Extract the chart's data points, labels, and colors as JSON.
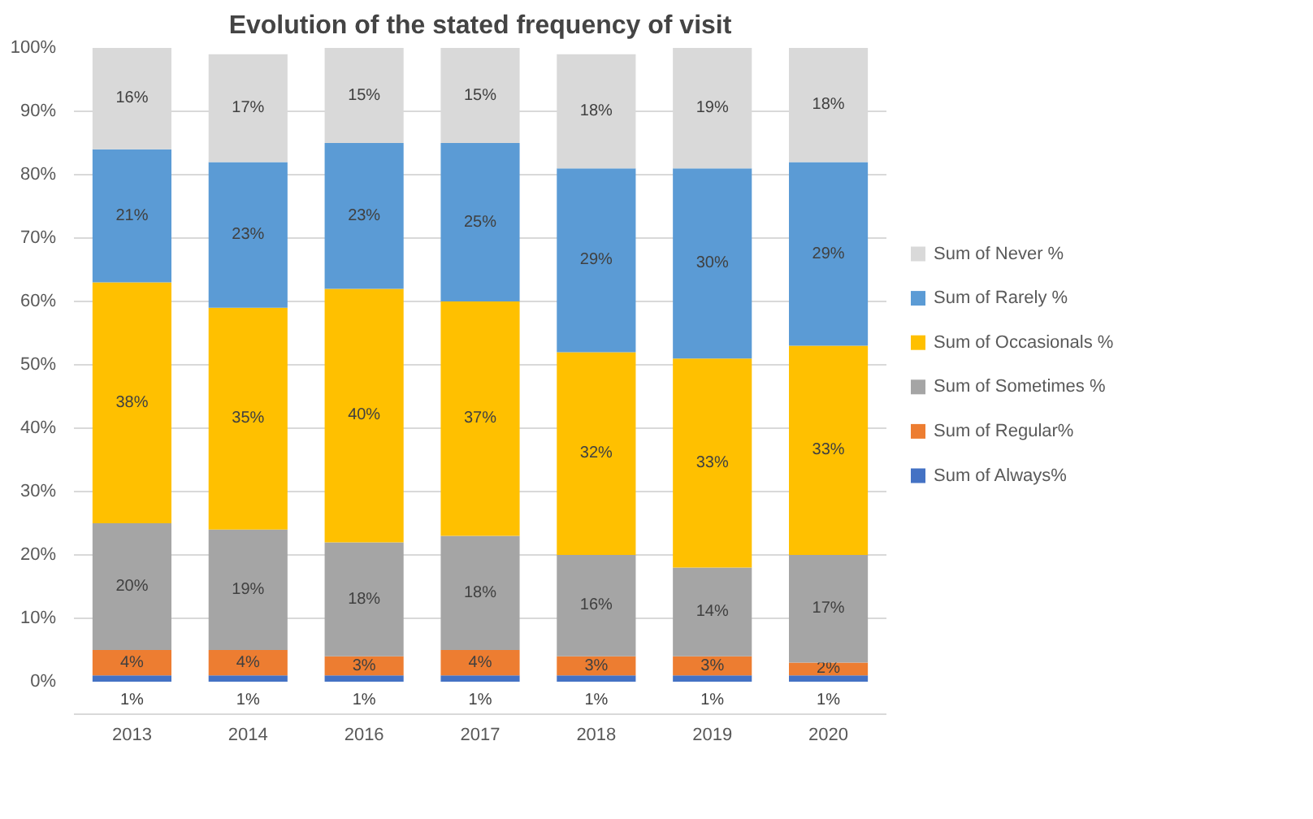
{
  "chart_data": {
    "type": "bar",
    "title": "Evolution of the stated frequency of visit",
    "stacked": true,
    "categories": [
      "2013",
      "2014",
      "2016",
      "2017",
      "2018",
      "2019",
      "2020"
    ],
    "series": [
      {
        "name": "Sum of Always%",
        "color": "#4472c4",
        "values": [
          1,
          1,
          1,
          1,
          1,
          1,
          1
        ],
        "value_labels": [
          "1%",
          "1%",
          "1%",
          "1%",
          "1%",
          "1%",
          "1%"
        ]
      },
      {
        "name": "Sum of Regular%",
        "color": "#ed7d31",
        "values": [
          4,
          4,
          3,
          4,
          3,
          3,
          2
        ],
        "value_labels": [
          "4%",
          "4%",
          "3%",
          "4%",
          "3%",
          "3%",
          "2%"
        ]
      },
      {
        "name": "Sum of Sometimes %",
        "color": "#a5a5a5",
        "values": [
          20,
          19,
          18,
          18,
          16,
          14,
          17
        ],
        "value_labels": [
          "20%",
          "19%",
          "18%",
          "18%",
          "16%",
          "14%",
          "17%"
        ]
      },
      {
        "name": "Sum of Occasionals %",
        "color": "#ffc000",
        "values": [
          38,
          35,
          40,
          37,
          32,
          33,
          33
        ],
        "value_labels": [
          "38%",
          "35%",
          "40%",
          "37%",
          "32%",
          "33%",
          "33%"
        ]
      },
      {
        "name": "Sum of Rarely %",
        "color": "#5b9bd5",
        "values": [
          21,
          23,
          23,
          25,
          29,
          30,
          29
        ],
        "value_labels": [
          "21%",
          "23%",
          "23%",
          "25%",
          "29%",
          "30%",
          "29%"
        ]
      },
      {
        "name": "Sum of Never %",
        "color": "#d9d9d9",
        "values": [
          16,
          17,
          15,
          15,
          18,
          19,
          18
        ],
        "value_labels": [
          "16%",
          "17%",
          "15%",
          "15%",
          "18%",
          "19%",
          "18%"
        ]
      }
    ],
    "ylim": [
      0,
      100
    ],
    "yticks": [
      {
        "value": 0,
        "label": "0%"
      },
      {
        "value": 10,
        "label": "10%"
      },
      {
        "value": 20,
        "label": "20%"
      },
      {
        "value": 30,
        "label": "30%"
      },
      {
        "value": 40,
        "label": "40%"
      },
      {
        "value": 50,
        "label": "50%"
      },
      {
        "value": 60,
        "label": "60%"
      },
      {
        "value": 70,
        "label": "70%"
      },
      {
        "value": 80,
        "label": "80%"
      },
      {
        "value": 90,
        "label": "90%"
      },
      {
        "value": 100,
        "label": "100%"
      }
    ],
    "grid": "y",
    "legend": "right"
  }
}
